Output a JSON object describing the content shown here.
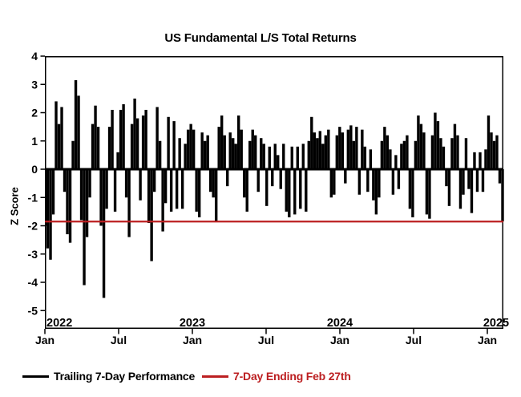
{
  "title": "US Fundamental L/S Total Returns",
  "colors": {
    "bars": "#000000",
    "reference_line": "#BC1F21",
    "axis": "#000000",
    "background": "#FFFFFF"
  },
  "legend": [
    {
      "label": "Trailing 7-Day Performance",
      "color": "#000000"
    },
    {
      "label": "7-Day Ending Feb 27th",
      "color": "#BC1F21"
    }
  ],
  "chart_data": {
    "type": "bar",
    "title": "US Fundamental L/S Total Returns",
    "xlabel": "",
    "ylabel": "Z Score",
    "ylim": [
      -5.65,
      4
    ],
    "yticks": [
      4,
      3,
      2,
      1,
      0,
      -1,
      -2,
      -3,
      -4,
      -5
    ],
    "xtick_labels": [
      "Jan",
      "Jul",
      "Jan",
      "Jul",
      "Jan",
      "Jul",
      "Jan"
    ],
    "year_labels": [
      "2022",
      "2023",
      "2024",
      "2025"
    ],
    "x_start_label": "Jan 2022",
    "x_end_label": "Feb 2025",
    "grid": false,
    "legend_position": "bottom-left",
    "reference_line": {
      "value": -1.85,
      "label": "7-Day Ending Feb 27th"
    },
    "series": [
      {
        "name": "Trailing 7-Day Performance",
        "unit": "Z Score",
        "sampling": "approx. weekly values estimated from chart, Jan 2022 - Feb 2025",
        "values": [
          -2.0,
          -2.8,
          -3.2,
          -1.6,
          2.4,
          1.6,
          2.2,
          -0.8,
          -2.3,
          -2.6,
          1.0,
          3.15,
          2.6,
          -1.8,
          -4.1,
          -2.4,
          -1.0,
          1.6,
          2.25,
          1.5,
          -2.0,
          -4.55,
          -1.4,
          1.5,
          2.1,
          -1.5,
          0.6,
          2.1,
          2.3,
          -1.0,
          -2.4,
          1.6,
          2.5,
          1.8,
          -1.1,
          1.9,
          2.1,
          -1.9,
          -3.25,
          -0.8,
          2.2,
          1.0,
          -2.2,
          -1.2,
          1.85,
          -1.5,
          1.7,
          -1.4,
          1.1,
          -1.4,
          0.9,
          1.4,
          1.6,
          1.4,
          -1.5,
          -1.7,
          1.3,
          1.0,
          1.2,
          -0.8,
          -1.0,
          -1.85,
          1.5,
          1.9,
          1.2,
          -0.6,
          1.3,
          1.1,
          0.9,
          1.9,
          1.4,
          -1.0,
          -1.5,
          1.0,
          1.4,
          1.2,
          -0.8,
          1.1,
          0.9,
          -1.3,
          0.8,
          -0.6,
          0.9,
          0.5,
          -0.7,
          0.9,
          -1.5,
          -1.7,
          0.8,
          -1.6,
          0.8,
          -1.4,
          0.9,
          -1.5,
          1.0,
          1.85,
          1.3,
          1.1,
          1.35,
          0.9,
          1.2,
          1.4,
          -1.0,
          -0.9,
          1.2,
          1.5,
          1.3,
          -0.5,
          1.4,
          1.55,
          1.0,
          1.5,
          -0.9,
          1.4,
          0.8,
          -0.8,
          0.7,
          -1.1,
          -1.6,
          -1.0,
          1.0,
          1.5,
          1.2,
          0.7,
          -0.9,
          0.5,
          -0.7,
          0.9,
          1.0,
          1.2,
          -1.4,
          -1.7,
          1.0,
          1.9,
          1.6,
          1.3,
          -1.6,
          -1.75,
          1.2,
          2.0,
          1.7,
          1.1,
          0.8,
          -0.6,
          -1.3,
          1.1,
          1.6,
          1.2,
          -1.4,
          -0.9,
          1.1,
          -0.7,
          -1.55,
          0.6,
          -0.8,
          0.6,
          -0.8,
          0.7,
          1.9,
          1.3,
          1.0,
          1.2,
          -0.5,
          -1.85
        ]
      }
    ]
  }
}
